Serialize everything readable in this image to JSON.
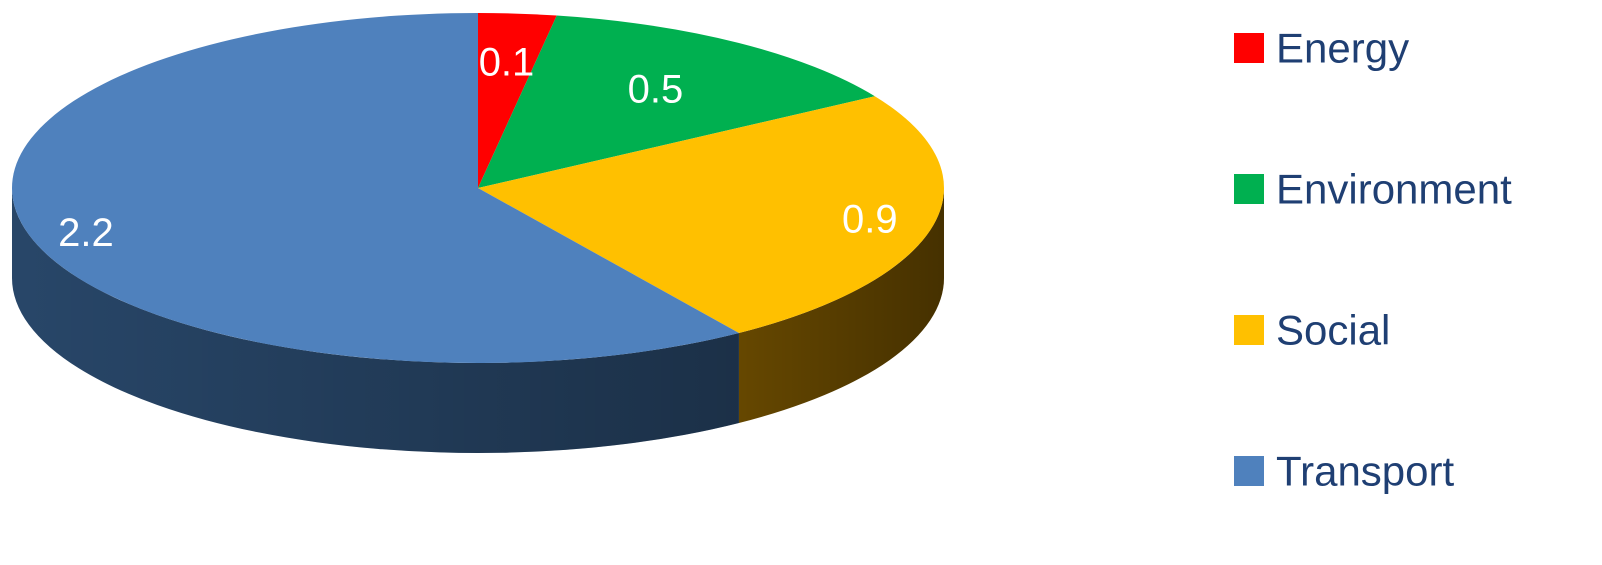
{
  "chart_data": {
    "type": "pie",
    "style": "3d",
    "start_angle": "12 o'clock",
    "direction": "clockwise",
    "title": "",
    "legend": {
      "placement": "right",
      "entries": [
        "Energy",
        "Environment",
        "Social",
        "Transport"
      ]
    },
    "categories": [
      "Energy",
      "Environment",
      "Social",
      "Transport"
    ],
    "values": [
      0.1,
      0.5,
      0.9,
      2.2
    ],
    "labels": [
      "0.1",
      "0.5",
      "0.9",
      "2.2"
    ],
    "colors": [
      "#ff0000",
      "#00b050",
      "#ffc000",
      "#4f81bd"
    ],
    "side_colors": [
      "#990000",
      "#006b30",
      "#6b4b00",
      "#2a4a6e"
    ]
  }
}
